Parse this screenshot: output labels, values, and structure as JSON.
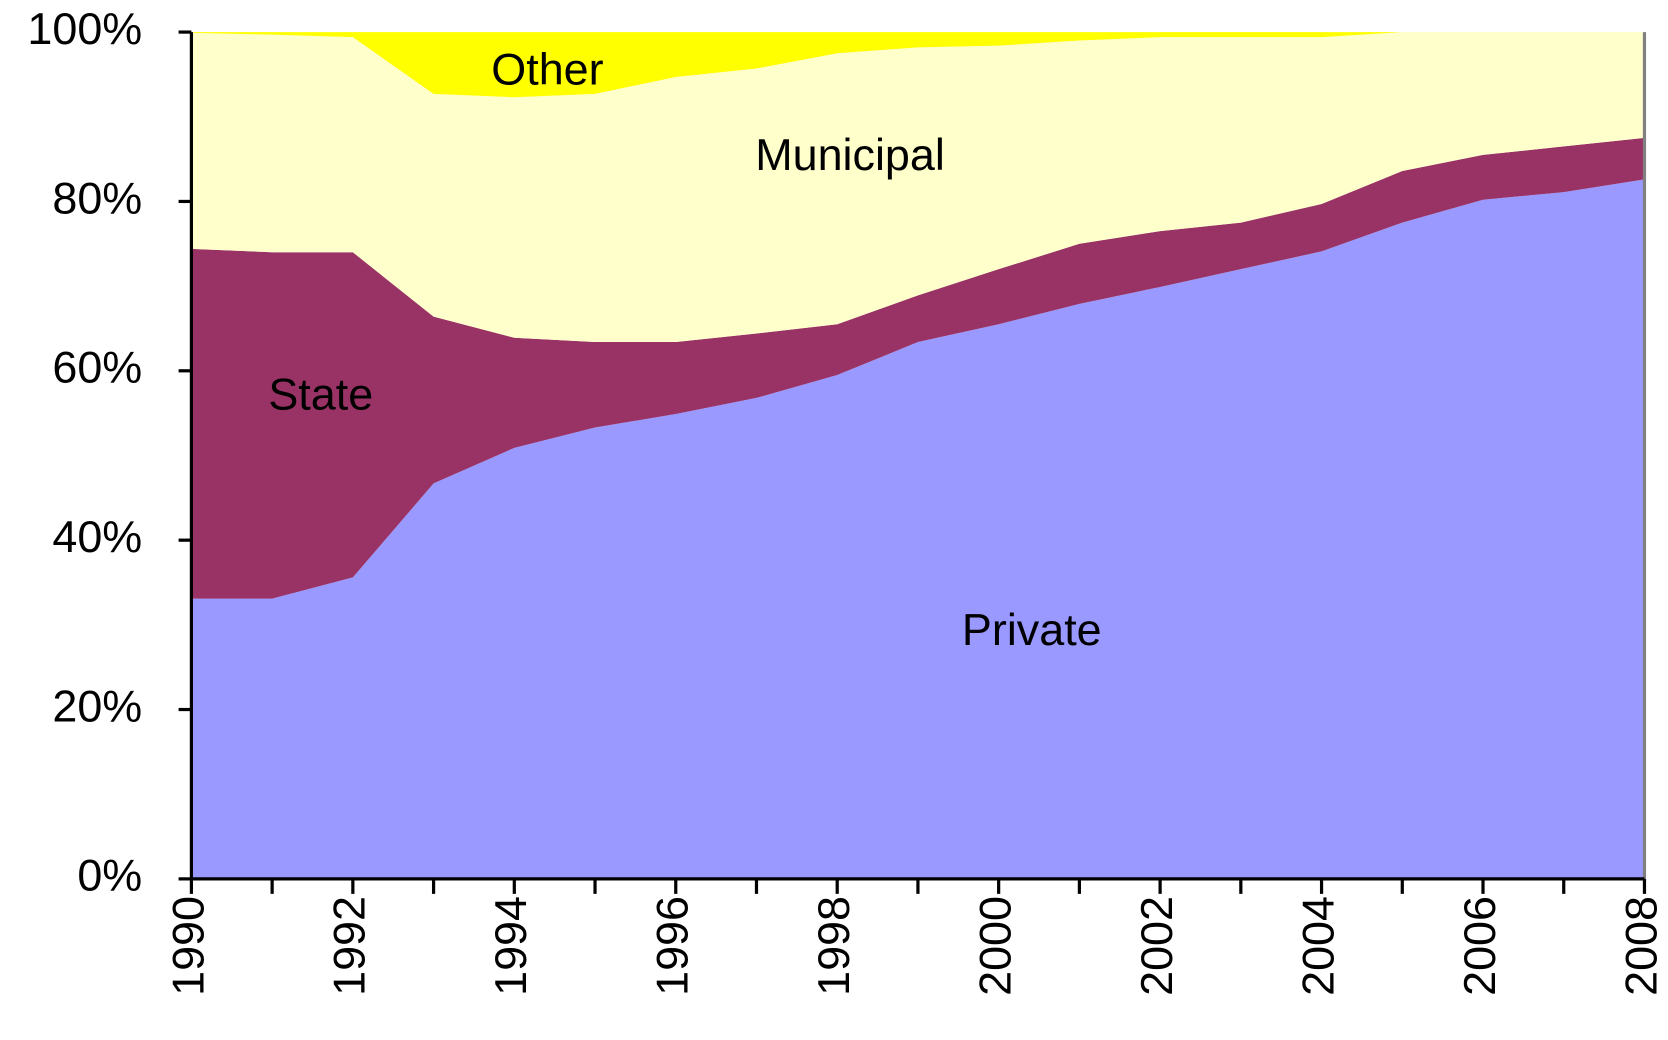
{
  "chart_data": {
    "type": "stacked_area",
    "x": [
      1990,
      1991,
      1992,
      1993,
      1994,
      1995,
      1996,
      1997,
      1998,
      1999,
      2000,
      2001,
      2002,
      2003,
      2004,
      2005,
      2006,
      2007,
      2008
    ],
    "series": [
      {
        "name": "Private",
        "color": "#9999ff",
        "values": [
          33.1,
          33.1,
          35.6,
          46.7,
          50.9,
          53.3,
          54.9,
          56.8,
          59.5,
          63.4,
          65.5,
          67.9,
          69.9,
          72.0,
          74.1,
          77.5,
          80.2,
          81.1,
          82.6
        ]
      },
      {
        "name": "State",
        "color": "#993366",
        "values": [
          41.3,
          40.9,
          38.4,
          19.7,
          13.0,
          10.1,
          8.5,
          7.6,
          6.0,
          5.5,
          6.5,
          7.1,
          6.6,
          5.5,
          5.6,
          6.1,
          5.3,
          5.4,
          4.9
        ]
      },
      {
        "name": "Municipal",
        "color": "#ffffcc",
        "values": [
          25.5,
          25.7,
          25.4,
          26.3,
          28.4,
          29.3,
          31.3,
          31.3,
          32.0,
          29.3,
          26.4,
          24.0,
          22.9,
          21.9,
          19.7,
          16.4,
          14.5,
          13.5,
          12.5
        ]
      },
      {
        "name": "Other",
        "color": "#ffff00",
        "values": [
          0.1,
          0.3,
          0.6,
          7.3,
          7.7,
          7.3,
          5.3,
          4.3,
          2.5,
          1.8,
          1.6,
          1.0,
          0.6,
          0.6,
          0.6,
          0,
          0,
          0,
          0
        ]
      }
    ],
    "xlim": [
      1990,
      2008
    ],
    "xticks": [
      1990,
      1992,
      1994,
      1996,
      1998,
      2000,
      2002,
      2004,
      2006,
      2008
    ],
    "ylim": [
      0,
      100
    ],
    "yticks": [
      {
        "value": 0,
        "label": "0%"
      },
      {
        "value": 20,
        "label": "20%"
      },
      {
        "value": 40,
        "label": "40%"
      },
      {
        "value": 60,
        "label": "60%"
      },
      {
        "value": 80,
        "label": "80%"
      },
      {
        "value": 100,
        "label": "100%"
      }
    ],
    "grid": false
  }
}
